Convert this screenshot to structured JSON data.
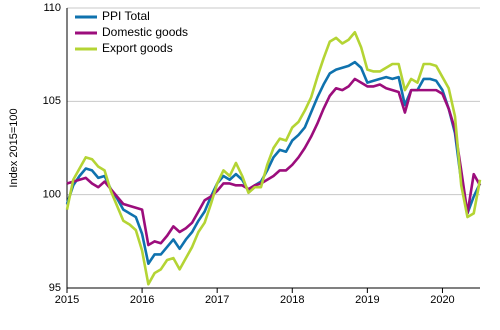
{
  "chart_data": {
    "type": "line",
    "y_label": "Index 2015=100",
    "x": [
      2015,
      2015.0833,
      2015.1667,
      2015.25,
      2015.3333,
      2015.4167,
      2015.5,
      2015.5833,
      2015.6667,
      2015.75,
      2015.8333,
      2015.9167,
      2016,
      2016.0833,
      2016.1667,
      2016.25,
      2016.3333,
      2016.4167,
      2016.5,
      2016.5833,
      2016.6667,
      2016.75,
      2016.8333,
      2016.9167,
      2017,
      2017.0833,
      2017.1667,
      2017.25,
      2017.3333,
      2017.4167,
      2017.5,
      2017.5833,
      2017.6667,
      2017.75,
      2017.8333,
      2017.9167,
      2018,
      2018.0833,
      2018.1667,
      2018.25,
      2018.3333,
      2018.4167,
      2018.5,
      2018.5833,
      2018.6667,
      2018.75,
      2018.8333,
      2018.9167,
      2019,
      2019.0833,
      2019.1667,
      2019.25,
      2019.3333,
      2019.4167,
      2019.5,
      2019.5833,
      2019.6667,
      2019.75,
      2019.8333,
      2019.9167,
      2020,
      2020.0833,
      2020.1667,
      2020.25,
      2020.3333,
      2020.4167,
      2020.5
    ],
    "series": [
      {
        "name": "PPI Total",
        "color": "#0f72ae",
        "values": [
          99.5,
          100.5,
          101.0,
          101.4,
          101.3,
          100.9,
          101.0,
          100.3,
          99.8,
          99.2,
          99.0,
          98.8,
          97.9,
          96.3,
          96.8,
          96.8,
          97.2,
          97.6,
          97.1,
          97.6,
          98.0,
          98.6,
          99.1,
          99.9,
          100.6,
          101.0,
          100.8,
          101.1,
          100.8,
          100.2,
          100.5,
          100.7,
          101.3,
          102.0,
          102.4,
          102.3,
          102.9,
          103.2,
          103.6,
          104.4,
          105.2,
          105.9,
          106.5,
          106.7,
          106.8,
          106.9,
          107.1,
          106.8,
          106.0,
          106.1,
          106.2,
          106.3,
          106.2,
          106.3,
          104.8,
          105.6,
          105.6,
          106.2,
          106.2,
          106.1,
          105.6,
          104.6,
          103.3,
          100.7,
          99.0,
          99.9,
          100.6
        ]
      },
      {
        "name": "Domestic goods",
        "color": "#9c0d7c",
        "values": [
          100.6,
          100.7,
          100.8,
          100.9,
          100.6,
          100.4,
          100.7,
          100.3,
          99.9,
          99.5,
          99.4,
          99.3,
          99.2,
          97.3,
          97.5,
          97.4,
          97.8,
          98.3,
          98.0,
          98.2,
          98.5,
          99.1,
          99.7,
          99.9,
          100.2,
          100.6,
          100.6,
          100.5,
          100.5,
          100.3,
          100.5,
          100.6,
          100.8,
          101.0,
          101.3,
          101.3,
          101.6,
          102.0,
          102.5,
          103.1,
          103.8,
          104.6,
          105.3,
          105.7,
          105.6,
          105.8,
          106.2,
          106.0,
          105.8,
          105.8,
          105.9,
          105.7,
          105.6,
          105.5,
          104.4,
          105.6,
          105.6,
          105.6,
          105.6,
          105.6,
          105.4,
          104.6,
          103.5,
          101.3,
          99.0,
          101.1,
          100.5
        ]
      },
      {
        "name": "Export goods",
        "color": "#b4d434",
        "values": [
          99.2,
          100.8,
          101.4,
          102.0,
          101.9,
          101.5,
          101.3,
          100.2,
          99.4,
          98.6,
          98.4,
          98.1,
          97.0,
          95.2,
          95.8,
          96.0,
          96.5,
          96.6,
          96.0,
          96.6,
          97.2,
          98.0,
          98.5,
          99.5,
          100.6,
          101.3,
          101.0,
          101.7,
          101.0,
          100.1,
          100.4,
          100.4,
          101.6,
          102.5,
          103.0,
          102.9,
          103.6,
          103.9,
          104.5,
          105.2,
          106.3,
          107.3,
          108.2,
          108.4,
          108.1,
          108.3,
          108.7,
          107.9,
          106.7,
          106.6,
          106.6,
          106.8,
          107.0,
          107.0,
          105.6,
          106.2,
          106.0,
          107.0,
          107.0,
          106.9,
          106.3,
          105.7,
          104.2,
          100.5,
          98.8,
          99.0,
          100.8
        ]
      }
    ],
    "xlim": [
      2015,
      2020.5
    ],
    "xticks": [
      2015,
      2016,
      2017,
      2018,
      2019,
      2020
    ],
    "ylim": [
      95,
      110
    ],
    "yticks": [
      95,
      100,
      105,
      110
    ],
    "grid": true,
    "legend": "top-left"
  }
}
